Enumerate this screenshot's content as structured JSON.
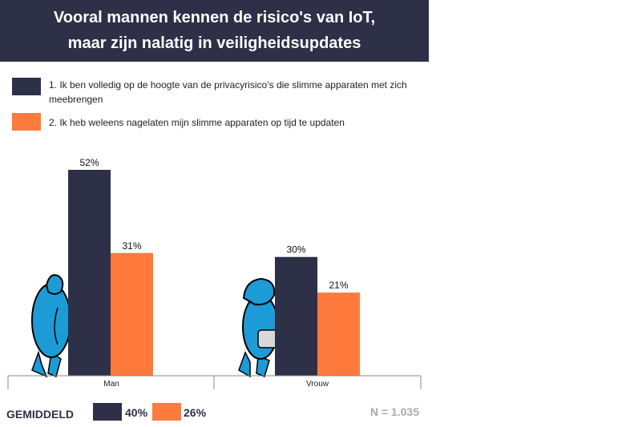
{
  "header": {
    "title_line1": "Vooral mannen kennen de risico's van IoT,",
    "title_line2": "maar zijn nalatig in veiligheidsupdates"
  },
  "colors": {
    "navy": "#2e3048",
    "orange": "#ff7a3d",
    "figure_blue": "#1d9bd7",
    "muted": "#a9aab5"
  },
  "chart_data": {
    "type": "bar",
    "categories": [
      "Man",
      "Vrouw"
    ],
    "series": [
      {
        "name": "1. Ik ben volledig op de hoogte van de privacyrisico’s die slimme apparaten met zich meebrengen",
        "color": "#2e3048",
        "values": [
          52,
          30
        ]
      },
      {
        "name": "2. Ik heb weleens nagelaten mijn slimme apparaten op tijd te updaten",
        "color": "#ff7a3d",
        "values": [
          31,
          21
        ]
      }
    ],
    "data_labels": [
      [
        "52%",
        "30%"
      ],
      [
        "31%",
        "21%"
      ]
    ],
    "ylim": [
      0,
      60
    ],
    "grid": false,
    "legend_position": "top-left"
  },
  "footer": {
    "average_label": "GEMIDDELD",
    "average_values": [
      "40%",
      "26%"
    ],
    "sample_size": "N = 1.035"
  },
  "icons": [
    "walking-man-icon",
    "walking-woman-icon"
  ]
}
